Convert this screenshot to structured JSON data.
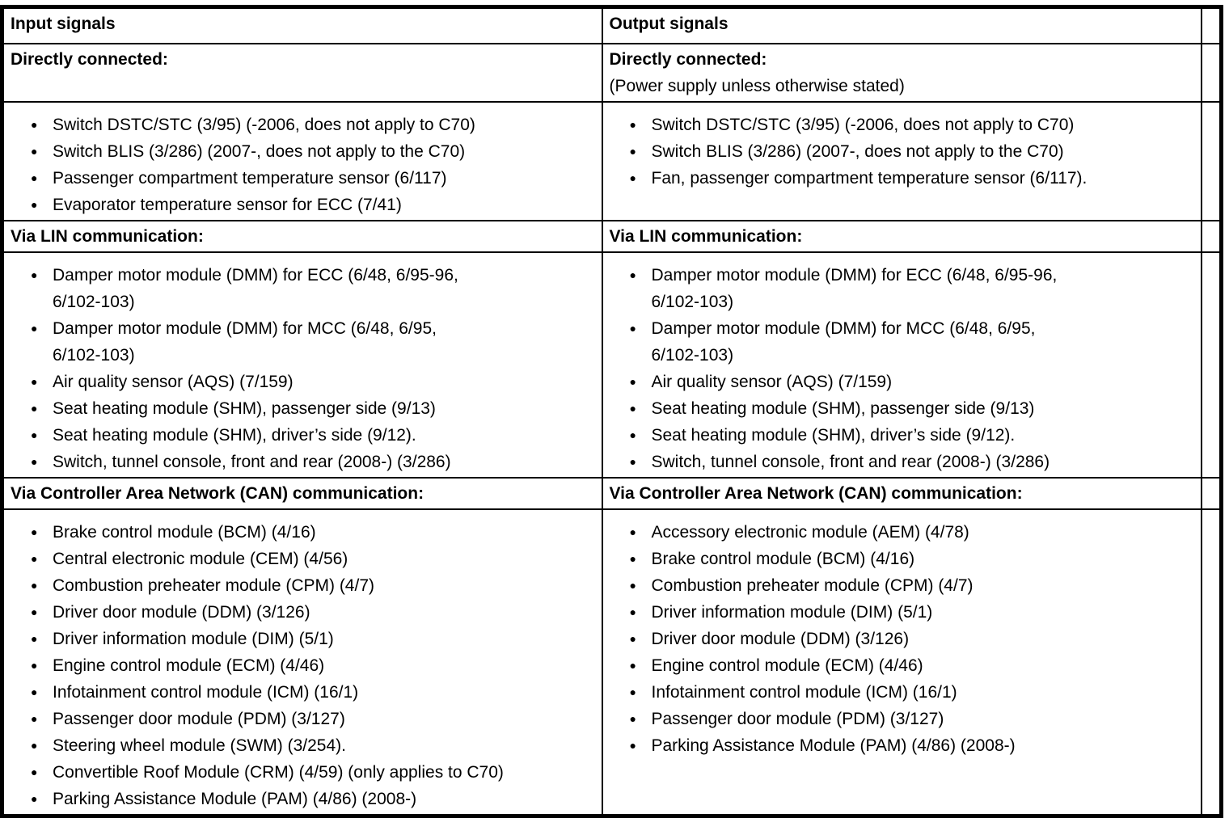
{
  "colors": {
    "border": "#000000",
    "text": "#000000",
    "background": "#ffffff"
  },
  "signals_table": {
    "input": {
      "header": "Input signals",
      "directly_connected": {
        "title": "Directly connected:",
        "items": [
          "Switch DSTC/STC (3/95) (-2006, does not apply to C70)",
          "Switch BLIS (3/286) (2007-, does not apply to the C70)",
          "Passenger compartment temperature sensor (6/117)",
          "Evaporator temperature sensor for ECC (7/41)"
        ]
      },
      "lin": {
        "title": "Via LIN communication:",
        "items": [
          "Damper motor module (DMM) for ECC (6/48, 6/95-96,\n6/102-103)",
          "Damper motor module (DMM) for MCC (6/48, 6/95,\n6/102-103)",
          "Air quality sensor (AQS) (7/159)",
          "Seat heating module (SHM), passenger side (9/13)",
          "Seat heating module (SHM), driver’s side (9/12).",
          "Switch, tunnel console, front and rear (2008-) (3/286)"
        ]
      },
      "can": {
        "title": "Via Controller Area Network (CAN) communication:",
        "items": [
          "Brake control module (BCM) (4/16)",
          "Central electronic module (CEM) (4/56)",
          "Combustion preheater module (CPM) (4/7)",
          "Driver door module (DDM) (3/126)",
          "Driver information module (DIM) (5/1)",
          "Engine control module (ECM) (4/46)",
          "Infotainment control module (ICM) (16/1)",
          "Passenger door module (PDM) (3/127)",
          "Steering wheel module (SWM) (3/254).",
          "Convertible Roof Module (CRM) (4/59) (only applies to C70)",
          "Parking Assistance Module (PAM) (4/86) (2008-)"
        ]
      }
    },
    "output": {
      "header": "Output signals",
      "directly_connected": {
        "title": "Directly connected:",
        "note": "(Power supply unless otherwise stated)",
        "items": [
          "Switch DSTC/STC (3/95) (-2006, does not apply to C70)",
          "Switch BLIS (3/286) (2007-, does not apply to the C70)",
          "Fan, passenger compartment temperature sensor (6/117)."
        ]
      },
      "lin": {
        "title": "Via LIN communication:",
        "items": [
          "Damper motor module (DMM) for ECC (6/48, 6/95-96,\n6/102-103)",
          "Damper motor module (DMM) for MCC (6/48, 6/95,\n6/102-103)",
          "Air quality sensor (AQS) (7/159)",
          "Seat heating module (SHM), passenger side (9/13)",
          "Seat heating module (SHM), driver’s side (9/12).",
          "Switch, tunnel console, front and rear (2008-) (3/286)"
        ]
      },
      "can": {
        "title": "Via Controller Area Network (CAN) communication:",
        "items": [
          "Accessory electronic module (AEM) (4/78)",
          "Brake control module (BCM) (4/16)",
          "Combustion preheater module (CPM) (4/7)",
          "Driver information module (DIM) (5/1)",
          "Driver door module (DDM) (3/126)",
          "Engine control module (ECM) (4/46)",
          "Infotainment control module (ICM) (16/1)",
          "Passenger door module (PDM) (3/127)",
          "Parking Assistance Module (PAM) (4/86) (2008-)"
        ]
      }
    }
  }
}
